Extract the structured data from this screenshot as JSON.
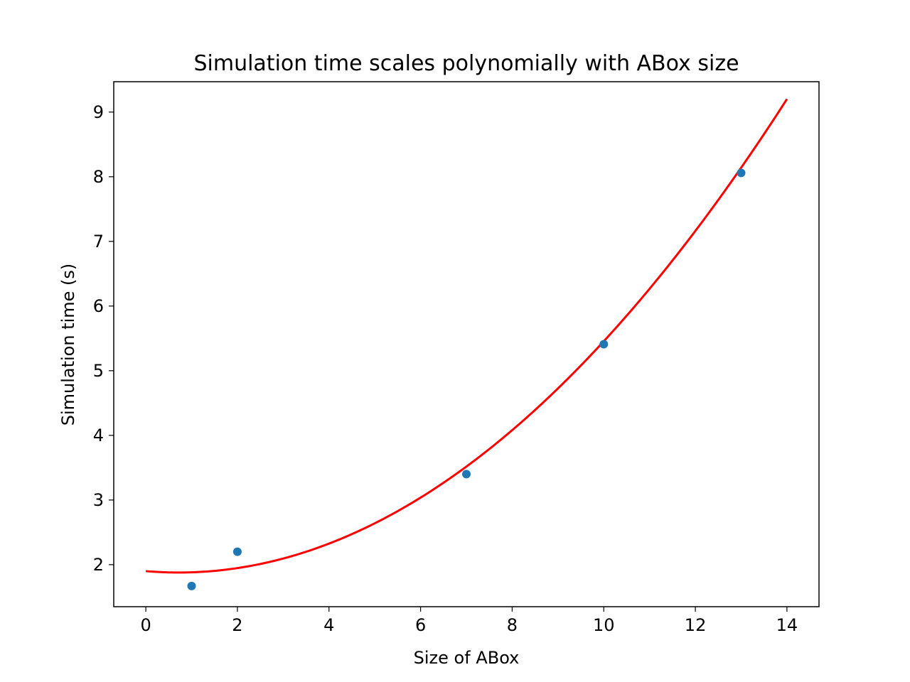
{
  "chart_data": {
    "type": "scatter",
    "title": "Simulation time scales polynomially with ABox size",
    "xlabel": "Size of ABox",
    "ylabel": "Simulation time (s)",
    "xlim": [
      -0.7,
      14.7
    ],
    "ylim": [
      1.35,
      9.47
    ],
    "xticks": [
      0,
      2,
      4,
      6,
      8,
      10,
      12,
      14
    ],
    "yticks": [
      2,
      3,
      4,
      5,
      6,
      7,
      8,
      9
    ],
    "grid": false,
    "series": [
      {
        "kind": "scatter",
        "color": "#1f77b4",
        "x": [
          1,
          2,
          7,
          10,
          13
        ],
        "y": [
          1.67,
          2.2,
          3.4,
          5.41,
          8.06
        ]
      },
      {
        "kind": "line",
        "color": "#ff0000",
        "fit_coefficients": [
          0.0415,
          -0.0595,
          1.9
        ],
        "x_range": [
          0,
          14
        ]
      }
    ]
  }
}
